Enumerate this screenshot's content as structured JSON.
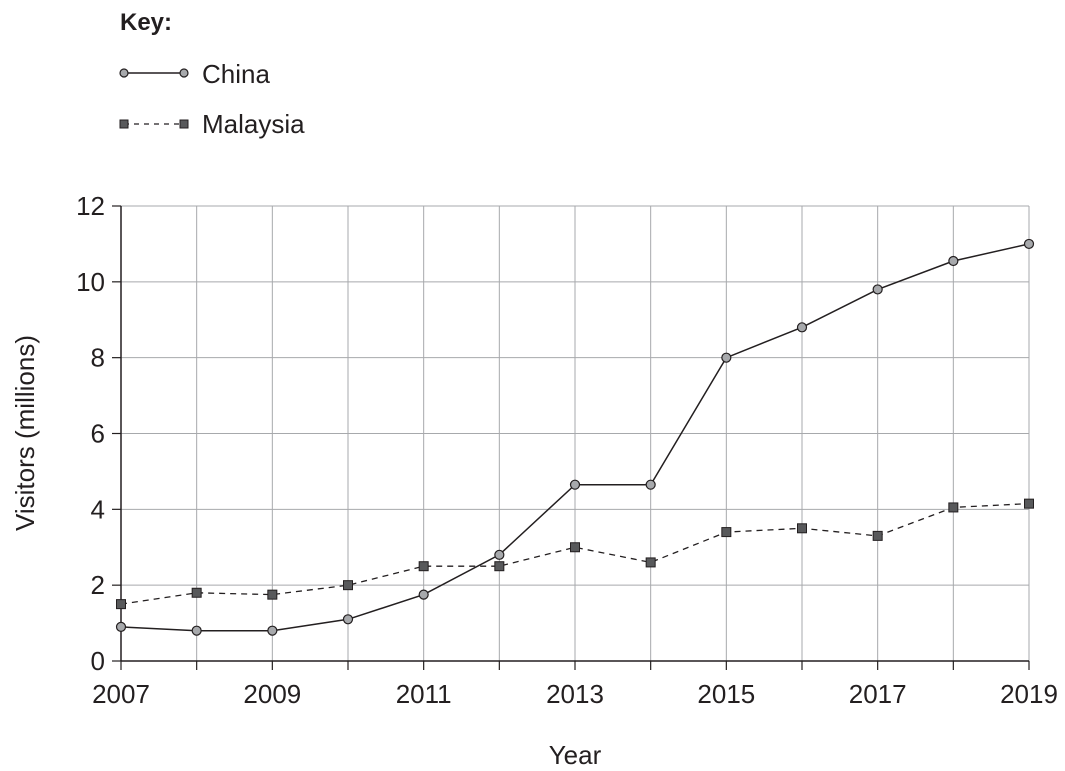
{
  "chart_data": {
    "type": "line",
    "key_title": "Key:",
    "x": [
      2007,
      2008,
      2009,
      2010,
      2011,
      2012,
      2013,
      2014,
      2015,
      2016,
      2017,
      2018,
      2019
    ],
    "xticks": [
      "2007",
      "2009",
      "2011",
      "2013",
      "2015",
      "2017",
      "2019"
    ],
    "yticks": [
      "0",
      "2",
      "4",
      "6",
      "8",
      "10",
      "12"
    ],
    "xlabel": "Year",
    "ylabel": "Visitors (millions)",
    "xlim": [
      2007,
      2019
    ],
    "ylim": [
      0,
      12
    ],
    "grid": true,
    "legend_position": "top-left",
    "series": [
      {
        "name": "China",
        "marker": "circle",
        "line_style": "solid",
        "marker_color": "#a7a9ac",
        "values": [
          0.9,
          0.8,
          0.8,
          1.1,
          1.75,
          2.8,
          4.65,
          4.65,
          8.0,
          8.8,
          9.8,
          10.55,
          11.0
        ]
      },
      {
        "name": "Malaysia",
        "marker": "square",
        "line_style": "dashed",
        "marker_color": "#58595b",
        "values": [
          1.5,
          1.8,
          1.75,
          2.0,
          2.5,
          2.5,
          3.0,
          2.6,
          3.4,
          3.5,
          3.3,
          4.05,
          4.15
        ]
      }
    ]
  }
}
